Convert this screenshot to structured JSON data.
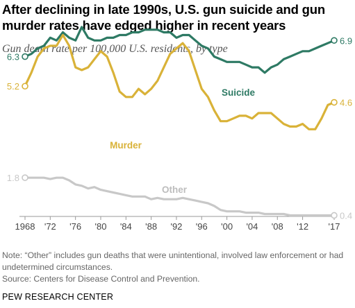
{
  "chart_data": {
    "type": "line",
    "title": "After declining in late 1990s, U.S. gun suicide and gun murder rates have edged higher in recent years",
    "subtitle": "Gun death rate per 100,000 U.S. residents, by type",
    "xlabel": "",
    "ylabel": "",
    "xlim": [
      1968,
      2017
    ],
    "ylim": [
      0,
      7.5
    ],
    "grid": false,
    "legend": "inline labels",
    "x_tick_labels": [
      "1968",
      "'72",
      "'76",
      "'80",
      "'84",
      "'88",
      "'92",
      "'96",
      "'00",
      "'04",
      "'08",
      "'12",
      "'17"
    ],
    "x_tick_values": [
      1968,
      1972,
      1976,
      1980,
      1984,
      1988,
      1992,
      1996,
      2000,
      2004,
      2008,
      2012,
      2017
    ],
    "x": [
      1968,
      1969,
      1970,
      1971,
      1972,
      1973,
      1974,
      1975,
      1976,
      1977,
      1978,
      1979,
      1980,
      1981,
      1982,
      1983,
      1984,
      1985,
      1986,
      1987,
      1988,
      1989,
      1990,
      1991,
      1992,
      1993,
      1994,
      1995,
      1996,
      1997,
      1998,
      1999,
      2000,
      2001,
      2002,
      2003,
      2004,
      2005,
      2006,
      2007,
      2008,
      2009,
      2010,
      2011,
      2012,
      2013,
      2014,
      2015,
      2016,
      2017
    ],
    "series": [
      {
        "name": "Suicide",
        "color": "#2e7a64",
        "start_label": "6.3",
        "end_label": "6.9",
        "values": [
          6.3,
          6.4,
          6.6,
          6.7,
          7.0,
          6.9,
          7.2,
          7.0,
          6.9,
          7.4,
          7.0,
          6.9,
          6.9,
          7.0,
          7.0,
          7.1,
          7.1,
          7.2,
          7.2,
          7.3,
          7.3,
          7.3,
          7.2,
          7.2,
          7.0,
          7.1,
          7.1,
          6.9,
          6.7,
          6.6,
          6.3,
          6.2,
          6.1,
          6.1,
          6.1,
          6.0,
          5.9,
          5.9,
          5.7,
          5.9,
          6.0,
          6.2,
          6.3,
          6.4,
          6.5,
          6.5,
          6.6,
          6.7,
          6.8,
          6.9
        ]
      },
      {
        "name": "Murder",
        "color": "#d9b238",
        "start_label": "5.2",
        "end_label": "4.6",
        "values": [
          5.2,
          5.7,
          6.3,
          6.6,
          6.7,
          6.7,
          7.1,
          6.7,
          5.9,
          5.8,
          5.9,
          6.2,
          6.5,
          6.3,
          5.7,
          5.0,
          4.8,
          4.8,
          5.1,
          4.9,
          5.1,
          5.4,
          5.9,
          6.4,
          6.6,
          6.8,
          6.5,
          5.8,
          5.1,
          4.8,
          4.3,
          3.9,
          3.9,
          4.0,
          4.1,
          4.1,
          4.0,
          4.2,
          4.2,
          4.2,
          4.0,
          3.8,
          3.7,
          3.7,
          3.8,
          3.6,
          3.6,
          4.0,
          4.5,
          4.6
        ]
      },
      {
        "name": "Other",
        "color": "#c8c8c8",
        "start_label": "1.8",
        "end_label": "0.4",
        "values": [
          1.8,
          1.8,
          1.8,
          1.8,
          1.75,
          1.8,
          1.8,
          1.7,
          1.55,
          1.5,
          1.4,
          1.45,
          1.35,
          1.3,
          1.25,
          1.2,
          1.15,
          1.1,
          1.1,
          1.1,
          1.0,
          1.05,
          1.0,
          1.0,
          1.0,
          1.05,
          1.0,
          0.95,
          0.9,
          0.85,
          0.75,
          0.6,
          0.55,
          0.55,
          0.55,
          0.5,
          0.5,
          0.5,
          0.45,
          0.45,
          0.45,
          0.45,
          0.4,
          0.4,
          0.4,
          0.4,
          0.4,
          0.4,
          0.4,
          0.4
        ]
      }
    ]
  },
  "footer": {
    "note": "Note: “Other” includes gun deaths that were unintentional, involved law enforcement or had undetermined circumstances.",
    "source": "Source: Centers for Disease Control and Prevention.",
    "brand": "PEW RESEARCH CENTER"
  }
}
